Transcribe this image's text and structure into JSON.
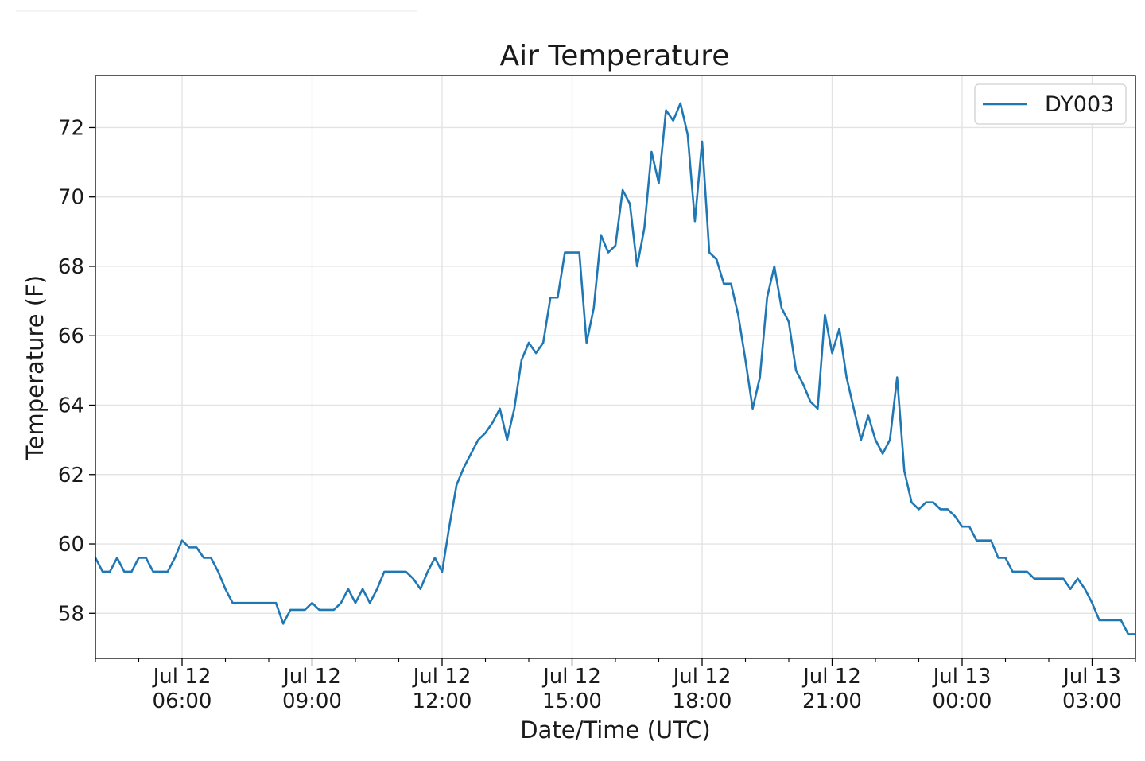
{
  "chart_data": {
    "type": "line",
    "title": "Air Temperature",
    "xlabel": "Date/Time (UTC)",
    "ylabel": "Temperature (F)",
    "grid": true,
    "legend_position": "top-right",
    "xlim": [
      "2019-07-12T04:00",
      "2019-07-13T04:00"
    ],
    "ylim": [
      56.7,
      73.5
    ],
    "y_ticks": [
      58,
      60,
      62,
      64,
      66,
      68,
      70,
      72
    ],
    "x_major_ticks": [
      {
        "t": "2019-07-12T06:00",
        "line1": "Jul 12",
        "line2": "06:00"
      },
      {
        "t": "2019-07-12T09:00",
        "line1": "Jul 12",
        "line2": "09:00"
      },
      {
        "t": "2019-07-12T12:00",
        "line1": "Jul 12",
        "line2": "12:00"
      },
      {
        "t": "2019-07-12T15:00",
        "line1": "Jul 12",
        "line2": "15:00"
      },
      {
        "t": "2019-07-12T18:00",
        "line1": "Jul 12",
        "line2": "18:00"
      },
      {
        "t": "2019-07-12T21:00",
        "line1": "Jul 12",
        "line2": "21:00"
      },
      {
        "t": "2019-07-13T00:00",
        "line1": "Jul 13",
        "line2": "00:00"
      },
      {
        "t": "2019-07-13T03:00",
        "line1": "Jul 13",
        "line2": "03:00"
      }
    ],
    "series": [
      {
        "name": "DY003",
        "color": "#1f77b4",
        "x": [
          "2019-07-12T04:00",
          "2019-07-12T04:10",
          "2019-07-12T04:20",
          "2019-07-12T04:30",
          "2019-07-12T04:40",
          "2019-07-12T04:50",
          "2019-07-12T05:00",
          "2019-07-12T05:10",
          "2019-07-12T05:20",
          "2019-07-12T05:30",
          "2019-07-12T05:40",
          "2019-07-12T05:50",
          "2019-07-12T06:00",
          "2019-07-12T06:10",
          "2019-07-12T06:20",
          "2019-07-12T06:30",
          "2019-07-12T06:40",
          "2019-07-12T06:50",
          "2019-07-12T07:00",
          "2019-07-12T07:10",
          "2019-07-12T07:20",
          "2019-07-12T07:30",
          "2019-07-12T07:40",
          "2019-07-12T07:50",
          "2019-07-12T08:00",
          "2019-07-12T08:10",
          "2019-07-12T08:20",
          "2019-07-12T08:30",
          "2019-07-12T08:40",
          "2019-07-12T08:50",
          "2019-07-12T09:00",
          "2019-07-12T09:10",
          "2019-07-12T09:20",
          "2019-07-12T09:30",
          "2019-07-12T09:40",
          "2019-07-12T09:50",
          "2019-07-12T10:00",
          "2019-07-12T10:10",
          "2019-07-12T10:20",
          "2019-07-12T10:30",
          "2019-07-12T10:40",
          "2019-07-12T10:50",
          "2019-07-12T11:00",
          "2019-07-12T11:10",
          "2019-07-12T11:20",
          "2019-07-12T11:30",
          "2019-07-12T11:40",
          "2019-07-12T11:50",
          "2019-07-12T12:00",
          "2019-07-12T12:10",
          "2019-07-12T12:20",
          "2019-07-12T12:30",
          "2019-07-12T12:40",
          "2019-07-12T12:50",
          "2019-07-12T13:00",
          "2019-07-12T13:10",
          "2019-07-12T13:20",
          "2019-07-12T13:30",
          "2019-07-12T13:40",
          "2019-07-12T13:50",
          "2019-07-12T14:00",
          "2019-07-12T14:10",
          "2019-07-12T14:20",
          "2019-07-12T14:30",
          "2019-07-12T14:40",
          "2019-07-12T14:50",
          "2019-07-12T15:00",
          "2019-07-12T15:10",
          "2019-07-12T15:20",
          "2019-07-12T15:30",
          "2019-07-12T15:40",
          "2019-07-12T15:50",
          "2019-07-12T16:00",
          "2019-07-12T16:10",
          "2019-07-12T16:20",
          "2019-07-12T16:30",
          "2019-07-12T16:40",
          "2019-07-12T16:50",
          "2019-07-12T17:00",
          "2019-07-12T17:10",
          "2019-07-12T17:20",
          "2019-07-12T17:30",
          "2019-07-12T17:40",
          "2019-07-12T17:50",
          "2019-07-12T18:00",
          "2019-07-12T18:10",
          "2019-07-12T18:20",
          "2019-07-12T18:30",
          "2019-07-12T18:40",
          "2019-07-12T18:50",
          "2019-07-12T19:00",
          "2019-07-12T19:10",
          "2019-07-12T19:20",
          "2019-07-12T19:30",
          "2019-07-12T19:40",
          "2019-07-12T19:50",
          "2019-07-12T20:00",
          "2019-07-12T20:10",
          "2019-07-12T20:20",
          "2019-07-12T20:30",
          "2019-07-12T20:40",
          "2019-07-12T20:50",
          "2019-07-12T21:00",
          "2019-07-12T21:10",
          "2019-07-12T21:20",
          "2019-07-12T21:30",
          "2019-07-12T21:40",
          "2019-07-12T21:50",
          "2019-07-12T22:00",
          "2019-07-12T22:10",
          "2019-07-12T22:20",
          "2019-07-12T22:30",
          "2019-07-12T22:40",
          "2019-07-12T22:50",
          "2019-07-12T23:00",
          "2019-07-12T23:10",
          "2019-07-12T23:20",
          "2019-07-12T23:30",
          "2019-07-12T23:40",
          "2019-07-12T23:50",
          "2019-07-13T00:00",
          "2019-07-13T00:10",
          "2019-07-13T00:20",
          "2019-07-13T00:30",
          "2019-07-13T00:40",
          "2019-07-13T00:50",
          "2019-07-13T01:00",
          "2019-07-13T01:10",
          "2019-07-13T01:20",
          "2019-07-13T01:30",
          "2019-07-13T01:40",
          "2019-07-13T01:50",
          "2019-07-13T02:00",
          "2019-07-13T02:10",
          "2019-07-13T02:20",
          "2019-07-13T02:30",
          "2019-07-13T02:40",
          "2019-07-13T02:50",
          "2019-07-13T03:00",
          "2019-07-13T03:10",
          "2019-07-13T03:20",
          "2019-07-13T03:30",
          "2019-07-13T03:40",
          "2019-07-13T03:50",
          "2019-07-13T04:00"
        ],
        "y": [
          59.6,
          59.2,
          59.2,
          59.6,
          59.2,
          59.2,
          59.6,
          59.6,
          59.2,
          59.2,
          59.2,
          59.6,
          60.1,
          59.9,
          59.9,
          59.6,
          59.6,
          59.2,
          58.7,
          58.3,
          58.3,
          58.3,
          58.3,
          58.3,
          58.3,
          58.3,
          57.7,
          58.1,
          58.1,
          58.1,
          58.3,
          58.1,
          58.1,
          58.1,
          58.3,
          58.7,
          58.3,
          58.7,
          58.3,
          58.7,
          59.2,
          59.2,
          59.2,
          59.2,
          59.0,
          58.7,
          59.2,
          59.6,
          59.2,
          60.5,
          61.7,
          62.2,
          62.6,
          63.0,
          63.2,
          63.5,
          63.9,
          63.0,
          63.9,
          65.3,
          65.8,
          65.5,
          65.8,
          67.1,
          67.1,
          68.4,
          68.4,
          68.4,
          65.8,
          66.8,
          68.9,
          68.4,
          68.6,
          70.2,
          69.8,
          68.0,
          69.1,
          71.3,
          70.4,
          72.5,
          72.2,
          72.7,
          71.8,
          69.3,
          71.6,
          68.4,
          68.2,
          67.5,
          67.5,
          66.6,
          65.3,
          63.9,
          64.8,
          67.1,
          68.0,
          66.8,
          66.4,
          65.0,
          64.6,
          64.1,
          63.9,
          66.6,
          65.5,
          66.2,
          64.8,
          63.9,
          63.0,
          63.7,
          63.0,
          62.6,
          63.0,
          64.8,
          62.1,
          61.2,
          61.0,
          61.2,
          61.2,
          61.0,
          61.0,
          60.8,
          60.5,
          60.5,
          60.1,
          60.1,
          60.1,
          59.6,
          59.6,
          59.2,
          59.2,
          59.2,
          59.0,
          59.0,
          59.0,
          59.0,
          59.0,
          58.7,
          59.0,
          58.7,
          58.3,
          57.8,
          57.8,
          57.8,
          57.8,
          57.4,
          57.4
        ]
      }
    ]
  }
}
